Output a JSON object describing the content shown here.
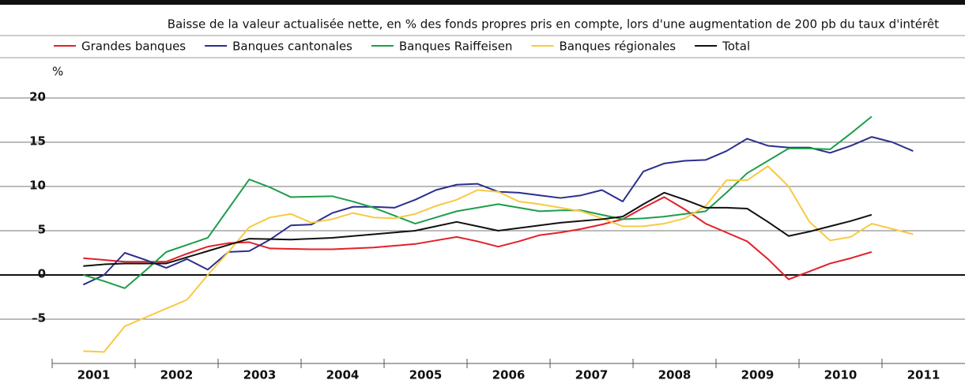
{
  "chart_data": {
    "type": "line",
    "title": "Baisse de la valeur actualisée nette, en % des fonds propres pris en compte, lors d'une augmentation de 200 pb du taux d'intérêt",
    "y_unit": "%",
    "x": [
      2001.375,
      2001.625,
      2001.875,
      2002.125,
      2002.375,
      2002.625,
      2002.875,
      2003.125,
      2003.375,
      2003.625,
      2003.875,
      2004.125,
      2004.375,
      2004.625,
      2004.875,
      2005.125,
      2005.375,
      2005.625,
      2005.875,
      2006.125,
      2006.375,
      2006.625,
      2006.875,
      2007.125,
      2007.375,
      2007.625,
      2007.875,
      2008.125,
      2008.375,
      2008.625,
      2008.875,
      2009.125,
      2009.375,
      2009.625,
      2009.875,
      2010.125,
      2010.375,
      2010.625,
      2010.875,
      2011.125,
      2011.375
    ],
    "series": [
      {
        "name": "Grandes banques",
        "color": "#e3202a",
        "values": [
          1.9,
          1.7,
          1.5,
          1.5,
          1.5,
          2.4,
          3.2,
          3.6,
          3.7,
          3.0,
          2.95,
          2.9,
          2.9,
          3.0,
          3.1,
          3.3,
          3.5,
          3.9,
          4.3,
          3.8,
          3.2,
          3.8,
          4.5,
          4.8,
          5.2,
          5.7,
          6.3,
          7.6,
          8.8,
          7.4,
          5.8,
          4.8,
          3.8,
          1.8,
          -0.5,
          0.4,
          1.3,
          1.9,
          2.6,
          null,
          null
        ]
      },
      {
        "name": "Banques cantonales",
        "color": "#2b2f8c",
        "values": [
          -1.1,
          0.0,
          2.5,
          1.7,
          0.8,
          1.8,
          0.6,
          2.6,
          2.7,
          4.0,
          5.6,
          5.7,
          7.0,
          7.7,
          7.7,
          7.6,
          8.5,
          9.6,
          10.2,
          10.3,
          9.4,
          9.3,
          9.0,
          8.7,
          9.0,
          9.6,
          8.3,
          11.7,
          12.6,
          12.9,
          13.0,
          14.0,
          15.4,
          14.6,
          14.4,
          14.4,
          13.8,
          14.6,
          15.6,
          15.0,
          14.0
        ]
      },
      {
        "name": "Banques Raiffeisen",
        "color": "#1e9e4a",
        "values": [
          0.0,
          -0.7,
          -1.5,
          0.5,
          2.6,
          3.4,
          4.2,
          7.5,
          10.8,
          9.9,
          8.8,
          8.85,
          8.9,
          8.3,
          7.6,
          6.7,
          5.8,
          6.5,
          7.2,
          7.6,
          8.0,
          7.6,
          7.2,
          7.3,
          7.3,
          6.8,
          6.3,
          6.4,
          6.6,
          6.9,
          7.2,
          9.3,
          11.5,
          12.9,
          14.3,
          14.3,
          14.2,
          16.0,
          17.9,
          null,
          null
        ]
      },
      {
        "name": "Banques régionales",
        "color": "#f7c944",
        "values": [
          -8.6,
          -8.7,
          -5.8,
          -4.8,
          -3.8,
          -2.8,
          0.0,
          2.6,
          5.4,
          6.5,
          6.9,
          5.9,
          6.3,
          7.0,
          6.5,
          6.4,
          6.9,
          7.8,
          8.5,
          9.6,
          9.4,
          8.3,
          8.0,
          7.6,
          7.2,
          6.4,
          5.5,
          5.5,
          5.8,
          6.4,
          7.8,
          10.7,
          10.7,
          12.3,
          10.0,
          6.0,
          3.9,
          4.3,
          5.8,
          5.2,
          4.6
        ]
      },
      {
        "name": "Total",
        "color": "#111111",
        "values": [
          1.0,
          1.2,
          1.3,
          1.3,
          1.3,
          2.0,
          2.7,
          3.4,
          4.1,
          4.05,
          4.0,
          4.1,
          4.2,
          4.4,
          4.6,
          4.8,
          5.0,
          5.5,
          6.0,
          5.5,
          5.0,
          5.3,
          5.6,
          5.9,
          6.1,
          6.3,
          6.6,
          8.0,
          9.3,
          8.5,
          7.6,
          7.6,
          7.5,
          6.0,
          4.4,
          4.9,
          5.5,
          6.1,
          6.8,
          null,
          null
        ]
      }
    ],
    "xlim": [
      2001,
      2012
    ],
    "xticks": [
      {
        "value": 2001.5,
        "label": "2001"
      },
      {
        "value": 2002.5,
        "label": "2002"
      },
      {
        "value": 2003.5,
        "label": "2003"
      },
      {
        "value": 2004.5,
        "label": "2004"
      },
      {
        "value": 2005.5,
        "label": "2005"
      },
      {
        "value": 2006.5,
        "label": "2006"
      },
      {
        "value": 2007.5,
        "label": "2007"
      },
      {
        "value": 2008.5,
        "label": "2008"
      },
      {
        "value": 2009.5,
        "label": "2009"
      },
      {
        "value": 2010.5,
        "label": "2010"
      },
      {
        "value": 2011.5,
        "label": "2011"
      }
    ],
    "xminor_ticks": [
      2001,
      2002,
      2003,
      2004,
      2005,
      2006,
      2007,
      2008,
      2009,
      2010,
      2011
    ],
    "ylim": [
      -10,
      20
    ],
    "yticks": [
      {
        "value": -5,
        "label": "–5"
      },
      0,
      5,
      10,
      15,
      20
    ],
    "grid": true
  }
}
